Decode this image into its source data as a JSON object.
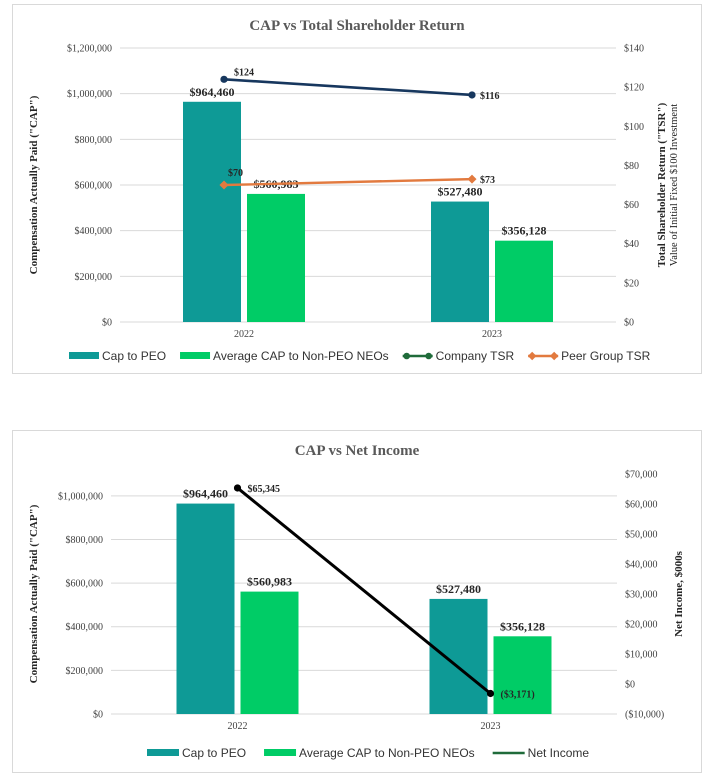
{
  "chart_data": [
    {
      "type": "bar",
      "title": "CAP vs Total Shareholder Return",
      "categories": [
        "2022",
        "2023"
      ],
      "ylabel": "Compensation Actually Paid (\"CAP\")",
      "y2label": "Total Shareholder Return (\"TSR\")",
      "y2label_sub": "Value of Initial Fixed $100 Investment",
      "ylim": [
        0,
        1200000
      ],
      "y2lim": [
        0,
        140
      ],
      "yticks": [
        "$0",
        "$200,000",
        "$400,000",
        "$600,000",
        "$800,000",
        "$1,000,000",
        "$1,200,000"
      ],
      "y2ticks": [
        "$0",
        "$20",
        "$40",
        "$60",
        "$80",
        "$100",
        "$120",
        "$140"
      ],
      "series": [
        {
          "name": "Cap to PEO",
          "kind": "bar",
          "axis": "left",
          "color": "#0e9a96",
          "values": [
            964460,
            527480
          ],
          "labels": [
            "$964,460",
            "$527,480"
          ]
        },
        {
          "name": "Average CAP to Non-PEO NEOs",
          "kind": "bar",
          "axis": "left",
          "color": "#00cc66",
          "values": [
            560983,
            356128
          ],
          "labels": [
            "$560,983",
            "$356,128"
          ]
        },
        {
          "name": "Company TSR",
          "kind": "line",
          "axis": "right",
          "color": "#17375e",
          "legend_color": "#1f6b3a",
          "values": [
            124,
            116
          ],
          "labels": [
            "$124",
            "$116"
          ]
        },
        {
          "name": "Peer Group TSR",
          "kind": "line",
          "axis": "right",
          "color": "#e27a3f",
          "values": [
            70,
            73
          ],
          "labels": [
            "$70",
            "$73"
          ]
        }
      ],
      "legend": "bottom"
    },
    {
      "type": "bar",
      "title": "CAP vs Net Income",
      "categories": [
        "2022",
        "2023"
      ],
      "ylabel": "Compensation Actually Paid (\"CAP\")",
      "y2label": "Net Income, $000s",
      "ylim": [
        0,
        1100000
      ],
      "y2lim": [
        -10000,
        70000
      ],
      "yticks": [
        "$0",
        "$200,000",
        "$400,000",
        "$600,000",
        "$800,000",
        "$1,000,000"
      ],
      "y2ticks": [
        "($10,000)",
        "$0",
        "$10,000",
        "$20,000",
        "$30,000",
        "$40,000",
        "$50,000",
        "$60,000",
        "$70,000"
      ],
      "series": [
        {
          "name": "Cap to PEO",
          "kind": "bar",
          "axis": "left",
          "color": "#0e9a96",
          "values": [
            964460,
            527480
          ],
          "labels": [
            "$964,460",
            "$527,480"
          ]
        },
        {
          "name": "Average CAP to Non-PEO NEOs",
          "kind": "bar",
          "axis": "left",
          "color": "#00cc66",
          "values": [
            560983,
            356128
          ],
          "labels": [
            "$560,983",
            "$356,128"
          ]
        },
        {
          "name": "Net Income",
          "kind": "line",
          "axis": "right",
          "color": "#000000",
          "legend_color": "#1f6b3a",
          "values": [
            65345,
            -3171
          ],
          "labels": [
            "$65,345",
            "($3,171)"
          ]
        }
      ],
      "legend": "bottom"
    }
  ]
}
